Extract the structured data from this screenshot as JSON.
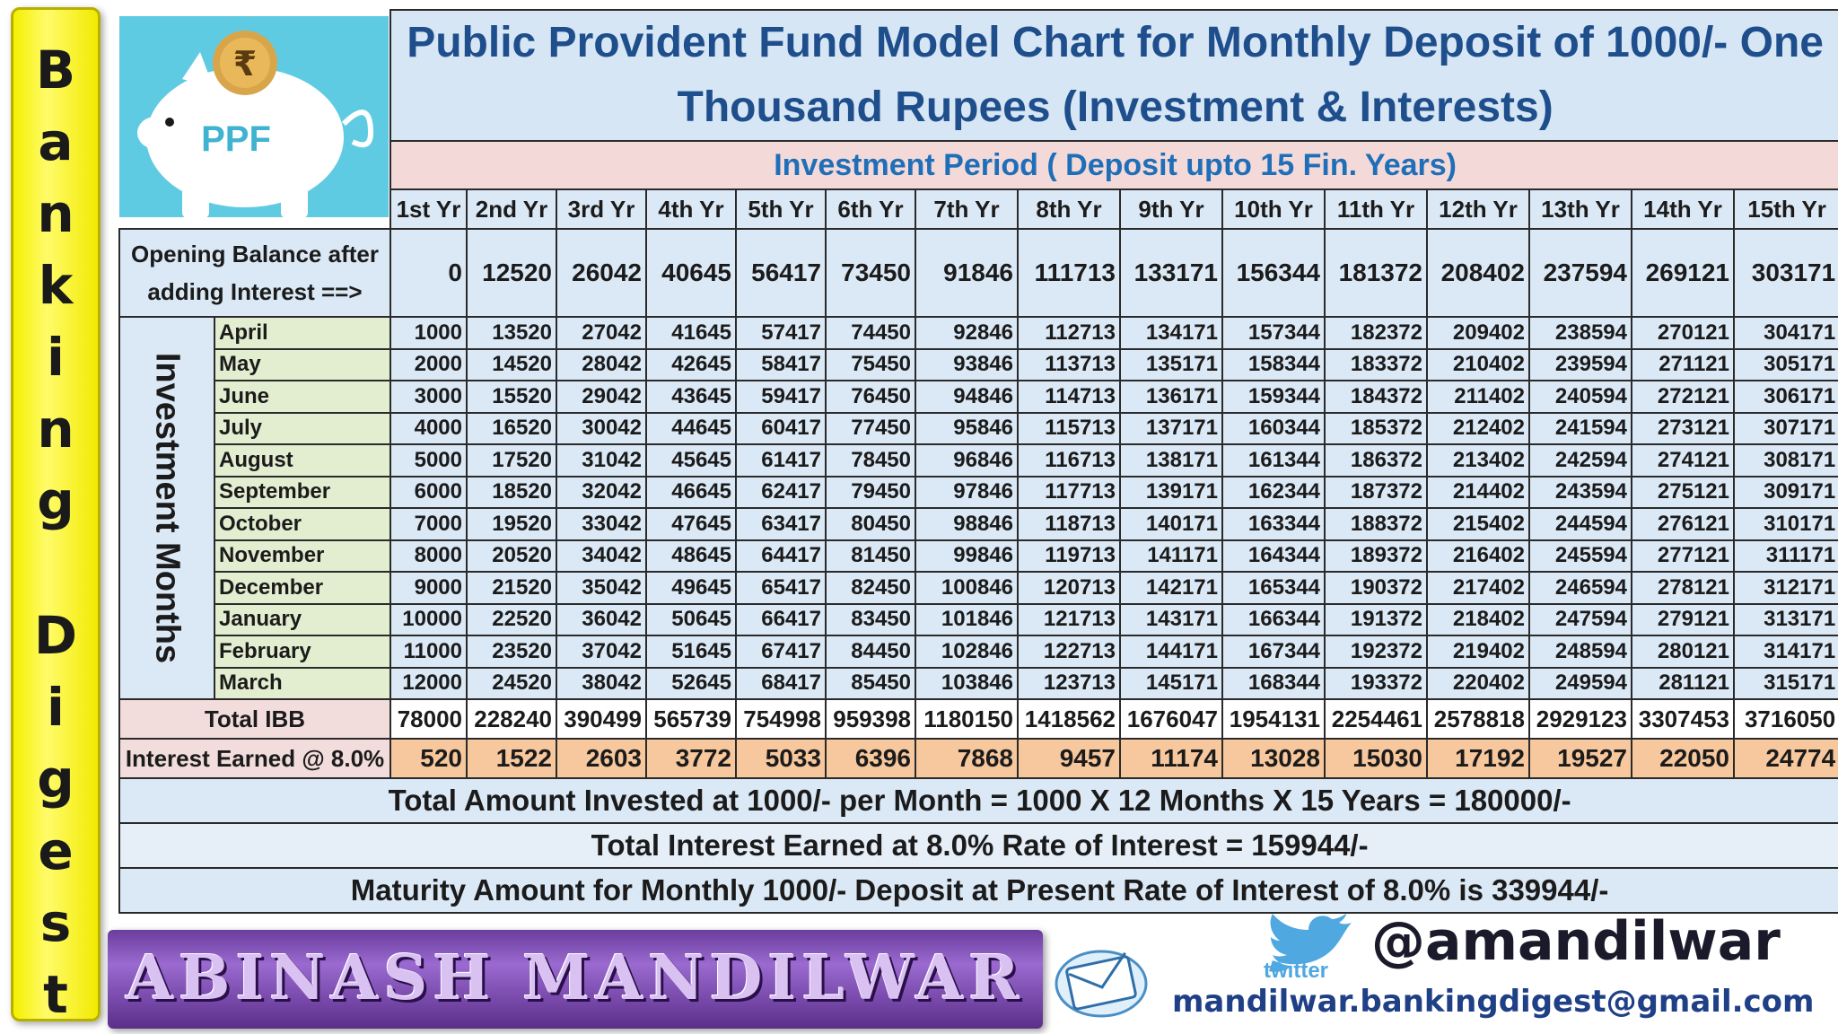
{
  "side_banner": {
    "letters": [
      "B",
      "a",
      "n",
      "k",
      "i",
      "n",
      "g",
      "D",
      "i",
      "g",
      "e",
      "s",
      "t"
    ]
  },
  "logo": {
    "label": "PPF",
    "symbol": "₹"
  },
  "title": "Public Provident Fund Model Chart for Monthly Deposit of 1000/- One Thousand Rupees (Investment & Interests)",
  "period_label": "Investment Period ( Deposit upto 15 Fin. Years)",
  "years": [
    "1st Yr",
    "2nd Yr",
    "3rd Yr",
    "4th Yr",
    "5th Yr",
    "6th Yr",
    "7th Yr",
    "8th Yr",
    "9th Yr",
    "10th Yr",
    "11th Yr",
    "12th Yr",
    "13th Yr",
    "14th Yr",
    "15th Yr"
  ],
  "opening_balance": {
    "label": "Opening Balance after adding Interest ==>",
    "values": [
      "0",
      "12520",
      "26042",
      "40645",
      "56417",
      "73450",
      "91846",
      "111713",
      "133171",
      "156344",
      "181372",
      "208402",
      "237594",
      "269121",
      "303171"
    ]
  },
  "months_label": "Investment Months",
  "months": [
    {
      "name": "April",
      "values": [
        "1000",
        "13520",
        "27042",
        "41645",
        "57417",
        "74450",
        "92846",
        "112713",
        "134171",
        "157344",
        "182372",
        "209402",
        "238594",
        "270121",
        "304171"
      ]
    },
    {
      "name": "May",
      "values": [
        "2000",
        "14520",
        "28042",
        "42645",
        "58417",
        "75450",
        "93846",
        "113713",
        "135171",
        "158344",
        "183372",
        "210402",
        "239594",
        "271121",
        "305171"
      ]
    },
    {
      "name": "June",
      "values": [
        "3000",
        "15520",
        "29042",
        "43645",
        "59417",
        "76450",
        "94846",
        "114713",
        "136171",
        "159344",
        "184372",
        "211402",
        "240594",
        "272121",
        "306171"
      ]
    },
    {
      "name": "July",
      "values": [
        "4000",
        "16520",
        "30042",
        "44645",
        "60417",
        "77450",
        "95846",
        "115713",
        "137171",
        "160344",
        "185372",
        "212402",
        "241594",
        "273121",
        "307171"
      ]
    },
    {
      "name": "August",
      "values": [
        "5000",
        "17520",
        "31042",
        "45645",
        "61417",
        "78450",
        "96846",
        "116713",
        "138171",
        "161344",
        "186372",
        "213402",
        "242594",
        "274121",
        "308171"
      ]
    },
    {
      "name": "September",
      "values": [
        "6000",
        "18520",
        "32042",
        "46645",
        "62417",
        "79450",
        "97846",
        "117713",
        "139171",
        "162344",
        "187372",
        "214402",
        "243594",
        "275121",
        "309171"
      ]
    },
    {
      "name": "October",
      "values": [
        "7000",
        "19520",
        "33042",
        "47645",
        "63417",
        "80450",
        "98846",
        "118713",
        "140171",
        "163344",
        "188372",
        "215402",
        "244594",
        "276121",
        "310171"
      ]
    },
    {
      "name": "November",
      "values": [
        "8000",
        "20520",
        "34042",
        "48645",
        "64417",
        "81450",
        "99846",
        "119713",
        "141171",
        "164344",
        "189372",
        "216402",
        "245594",
        "277121",
        "311171"
      ]
    },
    {
      "name": "December",
      "values": [
        "9000",
        "21520",
        "35042",
        "49645",
        "65417",
        "82450",
        "100846",
        "120713",
        "142171",
        "165344",
        "190372",
        "217402",
        "246594",
        "278121",
        "312171"
      ]
    },
    {
      "name": "January",
      "values": [
        "10000",
        "22520",
        "36042",
        "50645",
        "66417",
        "83450",
        "101846",
        "121713",
        "143171",
        "166344",
        "191372",
        "218402",
        "247594",
        "279121",
        "313171"
      ]
    },
    {
      "name": "February",
      "values": [
        "11000",
        "23520",
        "37042",
        "51645",
        "67417",
        "84450",
        "102846",
        "122713",
        "144171",
        "167344",
        "192372",
        "219402",
        "248594",
        "280121",
        "314171"
      ]
    },
    {
      "name": "March",
      "values": [
        "12000",
        "24520",
        "38042",
        "52645",
        "68417",
        "85450",
        "103846",
        "123713",
        "145171",
        "168344",
        "193372",
        "220402",
        "249594",
        "281121",
        "315171"
      ]
    }
  ],
  "total_ibb": {
    "label": "Total IBB",
    "values": [
      "78000",
      "228240",
      "390499",
      "565739",
      "754998",
      "959398",
      "1180150",
      "1418562",
      "1676047",
      "1954131",
      "2254461",
      "2578818",
      "2929123",
      "3307453",
      "3716050"
    ]
  },
  "interest": {
    "label": "Interest Earned @ 8.0%",
    "values": [
      "520",
      "1522",
      "2603",
      "3772",
      "5033",
      "6396",
      "7868",
      "9457",
      "11174",
      "13028",
      "15030",
      "17192",
      "19527",
      "22050",
      "24774"
    ]
  },
  "summary": {
    "invested": "Total Amount Invested at 1000/- per Month = 1000 X 12 Months X 15 Years = 180000/-",
    "interest": "Total Interest Earned at 8.0% Rate of Interest = 159944/-",
    "maturity": "Maturity Amount for Monthly 1000/- Deposit at Present Rate of Interest of 8.0% is  339944/-"
  },
  "footer": {
    "name": "ABINASH MANDILWAR",
    "twitter_word": "twitter",
    "handle": "@amandilwar",
    "email": "mandilwar.bankingdigest@gmail.com"
  },
  "colors": {
    "title_text": "#1f4e8c",
    "period_text": "#1f6fb8",
    "cell_blue": "#dbe8f5",
    "month_green": "#e3eed0",
    "interest_orange": "#f7c79d",
    "banner_yellow": "#f5f000",
    "banner_purple": "#6b3d9e"
  }
}
